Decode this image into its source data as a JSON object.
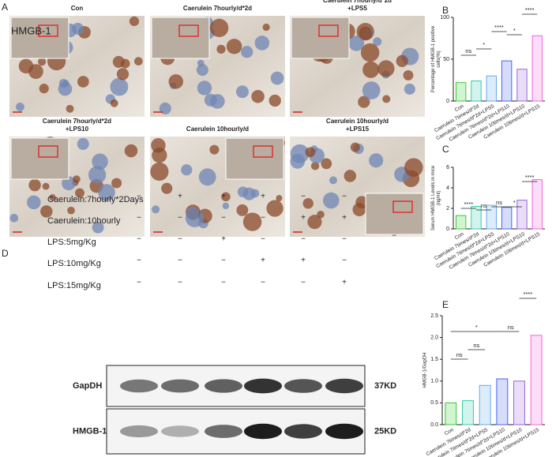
{
  "panel_letters": [
    "A",
    "B",
    "C",
    "D",
    "E"
  ],
  "panel_a": {
    "overlay": "HMGB-1",
    "images": [
      {
        "title": [
          "Con"
        ]
      },
      {
        "title": [
          "Caerulein 7hourly/d*2d"
        ]
      },
      {
        "title": [
          "Caerulein 7hourly/d*2d",
          "+LPS5"
        ]
      },
      {
        "title": [
          "Caerulein 7hourly/d*2d",
          "+LPS10"
        ]
      },
      {
        "title": [
          "Caerulein 10hourly/d"
        ]
      },
      {
        "title": [
          "Caerulein 10hourly/d",
          "+LPS15"
        ]
      }
    ]
  },
  "chart_data": [
    {
      "type": "bar",
      "y_label": [
        "Percentage of HMGB-1 positive",
        "cells(%)"
      ],
      "categories": [
        "Con",
        "Caerulein 7times/d*2d",
        "Caerulein 7times/d*2d+LPS5",
        "Caerulein 7times/d*2d+LPS10",
        "Caerulein 10times/d+LPS10",
        "Caerulein 10times/d+LPS15"
      ],
      "values": [
        22,
        24,
        30,
        48,
        38,
        78
      ],
      "colors": [
        "#33cc33",
        "#33ccaa",
        "#66aaee",
        "#4466ee",
        "#9966dd",
        "#ee66dd"
      ],
      "ylim": [
        0,
        100
      ],
      "yticks": [
        0,
        50,
        100
      ],
      "annotations": [
        "ns",
        "*",
        "****",
        "*",
        "****"
      ]
    },
    {
      "type": "bar",
      "y_label": [
        "Serum HMGB-1 Levels in mice",
        "(ng/ml)"
      ],
      "categories": [
        "Con",
        "Caerulein 7times/d*2d",
        "Caerulein 7times/d*2d+LPS5",
        "Caerulein 7times/d*2d+LPS10",
        "Caerulein 10times/d+LPS10",
        "Caerulein 10times/d+LPS15"
      ],
      "values": [
        1.3,
        2.2,
        2.3,
        2.1,
        2.8,
        4.8
      ],
      "colors": [
        "#33cc33",
        "#33ccaa",
        "#66aaee",
        "#4466ee",
        "#9966dd",
        "#ee66dd"
      ],
      "ylim": [
        0,
        6
      ],
      "yticks": [
        0,
        2,
        4,
        6
      ],
      "annotations": [
        "****",
        "ns",
        "ns",
        "*",
        "****"
      ]
    },
    {
      "type": "bar",
      "y_label": [
        "HMGB-1/GapDH"
      ],
      "categories": [
        "Con",
        "Caerulein 7times/d*2d",
        "Caerulein 7times/d*2d+LPS5",
        "Caerulein 7times/d*2d+LPS10",
        "Caerulein 10times/d+LPS10",
        "Caerulein 10times/d+LPS15"
      ],
      "values": [
        0.5,
        0.55,
        0.9,
        1.05,
        1.0,
        2.05
      ],
      "colors": [
        "#33cc33",
        "#33ccaa",
        "#66aaee",
        "#4466ee",
        "#9966dd",
        "#ee66dd"
      ],
      "ylim": [
        0,
        2.5
      ],
      "yticks": [
        {
          "value": 0,
          "label": "0.0"
        },
        0.5,
        {
          "value": 1,
          "label": "1.0"
        },
        1.5,
        {
          "value": 2,
          "label": "2.0"
        },
        2.5
      ],
      "annotations": [
        "ns",
        "ns",
        "*",
        "ns",
        "****"
      ]
    }
  ],
  "panel_d": {
    "conditions": [
      {
        "label": "Caerulein:7hourly*2Days",
        "signs": [
          "−",
          "+",
          "+",
          "+",
          "−",
          "−"
        ]
      },
      {
        "label": "Caerulein:10hourly",
        "signs": [
          "−",
          "−",
          "−",
          "−",
          "+",
          "+"
        ]
      },
      {
        "label": "LPS:5mg/Kg",
        "signs": [
          "−",
          "−",
          "+",
          "−",
          "−",
          "−"
        ]
      },
      {
        "label": "LPS:10mg/Kg",
        "signs": [
          "−",
          "−",
          "−",
          "+",
          "+",
          "−"
        ]
      },
      {
        "label": "LPS:15mg/Kg",
        "signs": [
          "−",
          "−",
          "−",
          "−",
          "−",
          "+"
        ]
      }
    ],
    "blots": [
      {
        "name": "GapDH",
        "size": "37KD"
      },
      {
        "name": "HMGB-1",
        "size": "25KD"
      }
    ]
  }
}
